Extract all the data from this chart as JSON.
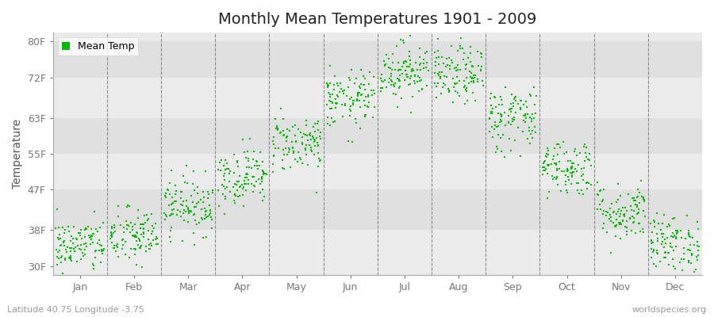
{
  "title": "Monthly Mean Temperatures 1901 - 2009",
  "ylabel": "Temperature",
  "xlabel_labels": [
    "Jan",
    "Feb",
    "Mar",
    "Apr",
    "May",
    "Jun",
    "Jul",
    "Aug",
    "Sep",
    "Oct",
    "Nov",
    "Dec"
  ],
  "ytick_labels": [
    "30F",
    "38F",
    "47F",
    "55F",
    "63F",
    "72F",
    "80F"
  ],
  "ytick_values": [
    30,
    38,
    47,
    55,
    63,
    72,
    80
  ],
  "ylim": [
    28,
    82
  ],
  "dot_color": "#00bb00",
  "bg_color_light": "#ebebeb",
  "bg_color_dark": "#e0e0e0",
  "fig_bg_color": "#ffffff",
  "legend_label": "Mean Temp",
  "footer_left": "Latitude 40.75 Longitude -3.75",
  "footer_right": "worldspecies.org",
  "title_fontsize": 14,
  "label_fontsize": 9,
  "footer_fontsize": 8,
  "monthly_means_F": [
    34.5,
    36.5,
    43.5,
    50.0,
    57.5,
    67.0,
    73.5,
    72.5,
    63.0,
    52.0,
    42.0,
    35.0
  ],
  "monthly_std_F": [
    3.0,
    3.2,
    3.2,
    3.2,
    3.2,
    3.2,
    3.2,
    3.2,
    3.8,
    3.2,
    3.2,
    3.2
  ],
  "n_years": 109,
  "seed": 42
}
